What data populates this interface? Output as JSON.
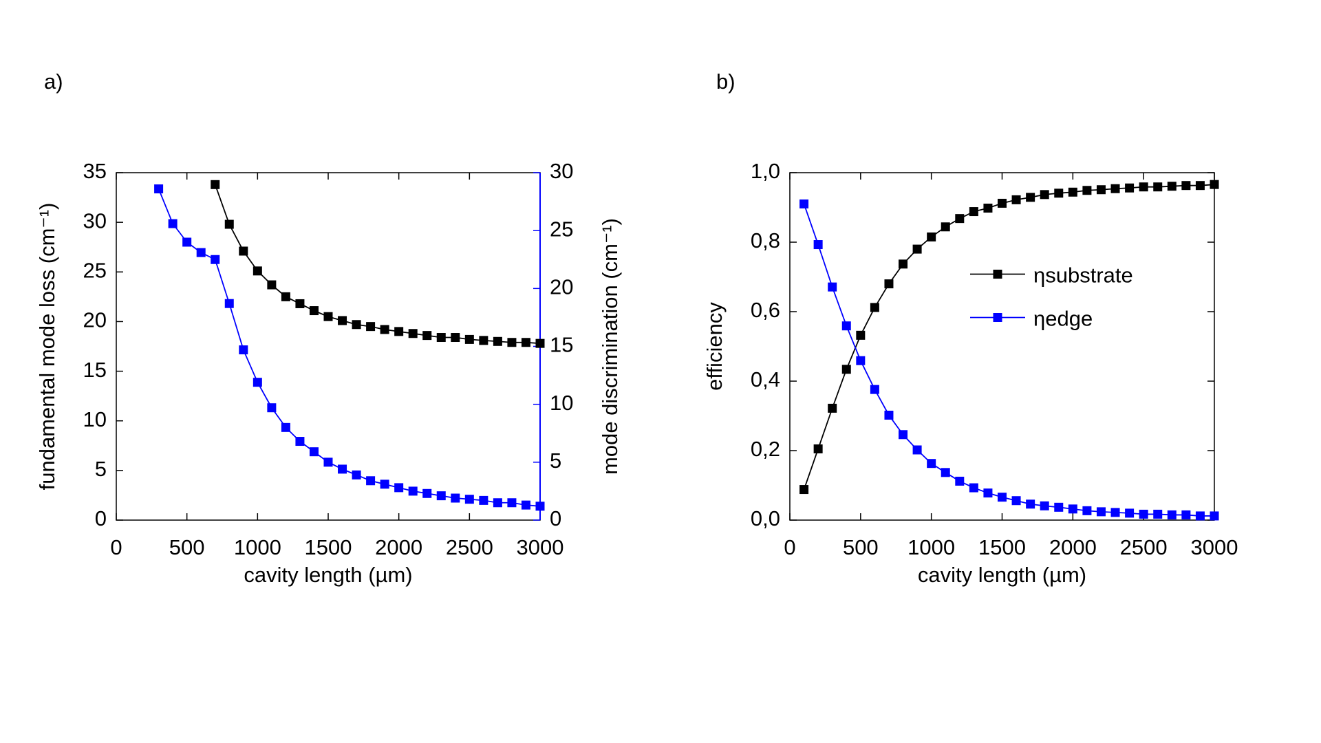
{
  "chart_data": [
    {
      "type": "line",
      "panel_label": "a)",
      "xlabel": "cavity length (µm)",
      "ylabel": "fundamental mode loss (cm⁻¹)",
      "y2label": "mode discrimination (cm⁻¹)",
      "y2color": "#0000ff",
      "xlim": [
        0,
        3000
      ],
      "xticks": [
        0,
        500,
        1000,
        1500,
        2000,
        2500,
        3000
      ],
      "ylim": [
        0,
        35
      ],
      "yticks": [
        0,
        5,
        10,
        15,
        20,
        25,
        30,
        35
      ],
      "y2lim": [
        0,
        30
      ],
      "y2ticks": [
        0,
        5,
        10,
        15,
        20,
        25,
        30
      ],
      "series": [
        {
          "color": "#000000",
          "x": [
            700,
            800,
            900,
            1000,
            1100,
            1200,
            1300,
            1400,
            1500,
            1600,
            1700,
            1800,
            1900,
            2000,
            2100,
            2200,
            2300,
            2400,
            2500,
            2600,
            2700,
            2800,
            2900,
            3000
          ],
          "values": [
            33.8,
            29.8,
            27.1,
            25.1,
            23.7,
            22.5,
            21.8,
            21.1,
            20.5,
            20.1,
            19.7,
            19.5,
            19.2,
            19.0,
            18.8,
            18.6,
            18.4,
            18.4,
            18.2,
            18.1,
            18.0,
            17.9,
            17.9,
            17.8
          ]
        },
        {
          "color": "#0000ff",
          "axis": "y2",
          "x": [
            300,
            400,
            500,
            600,
            700,
            800,
            900,
            1000,
            1100,
            1200,
            1300,
            1400,
            1500,
            1600,
            1700,
            1800,
            1900,
            2000,
            2100,
            2200,
            2300,
            2400,
            2500,
            2600,
            2700,
            2800,
            2900,
            3000
          ],
          "values": [
            28.6,
            25.6,
            24.0,
            23.1,
            22.5,
            18.7,
            14.7,
            11.9,
            9.7,
            8.0,
            6.8,
            5.9,
            5.0,
            4.4,
            3.9,
            3.4,
            3.1,
            2.8,
            2.5,
            2.3,
            2.1,
            1.9,
            1.8,
            1.7,
            1.5,
            1.5,
            1.3,
            1.2
          ]
        }
      ]
    },
    {
      "type": "line",
      "panel_label": "b)",
      "xlabel": "cavity length (µm)",
      "ylabel": "efficiency",
      "legend": "center-right",
      "xlim": [
        0,
        3000
      ],
      "xticks": [
        0,
        500,
        1000,
        1500,
        2000,
        2500,
        3000
      ],
      "ylim": [
        0,
        1
      ],
      "yticks": [
        {
          "value": 0,
          "label": "0,0"
        },
        {
          "value": 0.2,
          "label": "0,2"
        },
        {
          "value": 0.4,
          "label": "0,4"
        },
        {
          "value": 0.6,
          "label": "0,6"
        },
        {
          "value": 0.8,
          "label": "0,8"
        },
        {
          "value": 1,
          "label": "1,0"
        }
      ],
      "series": [
        {
          "name": "ηsubstrate",
          "color": "#000000",
          "x": [
            100,
            200,
            300,
            400,
            500,
            600,
            700,
            800,
            900,
            1000,
            1100,
            1200,
            1300,
            1400,
            1500,
            1600,
            1700,
            1800,
            1900,
            2000,
            2100,
            2200,
            2300,
            2400,
            2500,
            2600,
            2700,
            2800,
            2900,
            3000
          ],
          "values": [
            0.088,
            0.205,
            0.322,
            0.434,
            0.532,
            0.612,
            0.68,
            0.737,
            0.78,
            0.815,
            0.844,
            0.868,
            0.888,
            0.898,
            0.912,
            0.922,
            0.929,
            0.937,
            0.941,
            0.944,
            0.949,
            0.951,
            0.954,
            0.956,
            0.959,
            0.959,
            0.961,
            0.963,
            0.963,
            0.966
          ]
        },
        {
          "name": "ηedge",
          "color": "#0000ff",
          "x": [
            100,
            200,
            300,
            400,
            500,
            600,
            700,
            800,
            900,
            1000,
            1100,
            1200,
            1300,
            1400,
            1500,
            1600,
            1700,
            1800,
            1900,
            2000,
            2100,
            2200,
            2300,
            2400,
            2500,
            2600,
            2700,
            2800,
            2900,
            3000
          ],
          "values": [
            0.91,
            0.793,
            0.671,
            0.559,
            0.459,
            0.376,
            0.302,
            0.246,
            0.202,
            0.163,
            0.137,
            0.112,
            0.093,
            0.078,
            0.066,
            0.056,
            0.046,
            0.041,
            0.037,
            0.032,
            0.027,
            0.024,
            0.022,
            0.02,
            0.017,
            0.017,
            0.015,
            0.015,
            0.012,
            0.012
          ]
        }
      ]
    }
  ]
}
